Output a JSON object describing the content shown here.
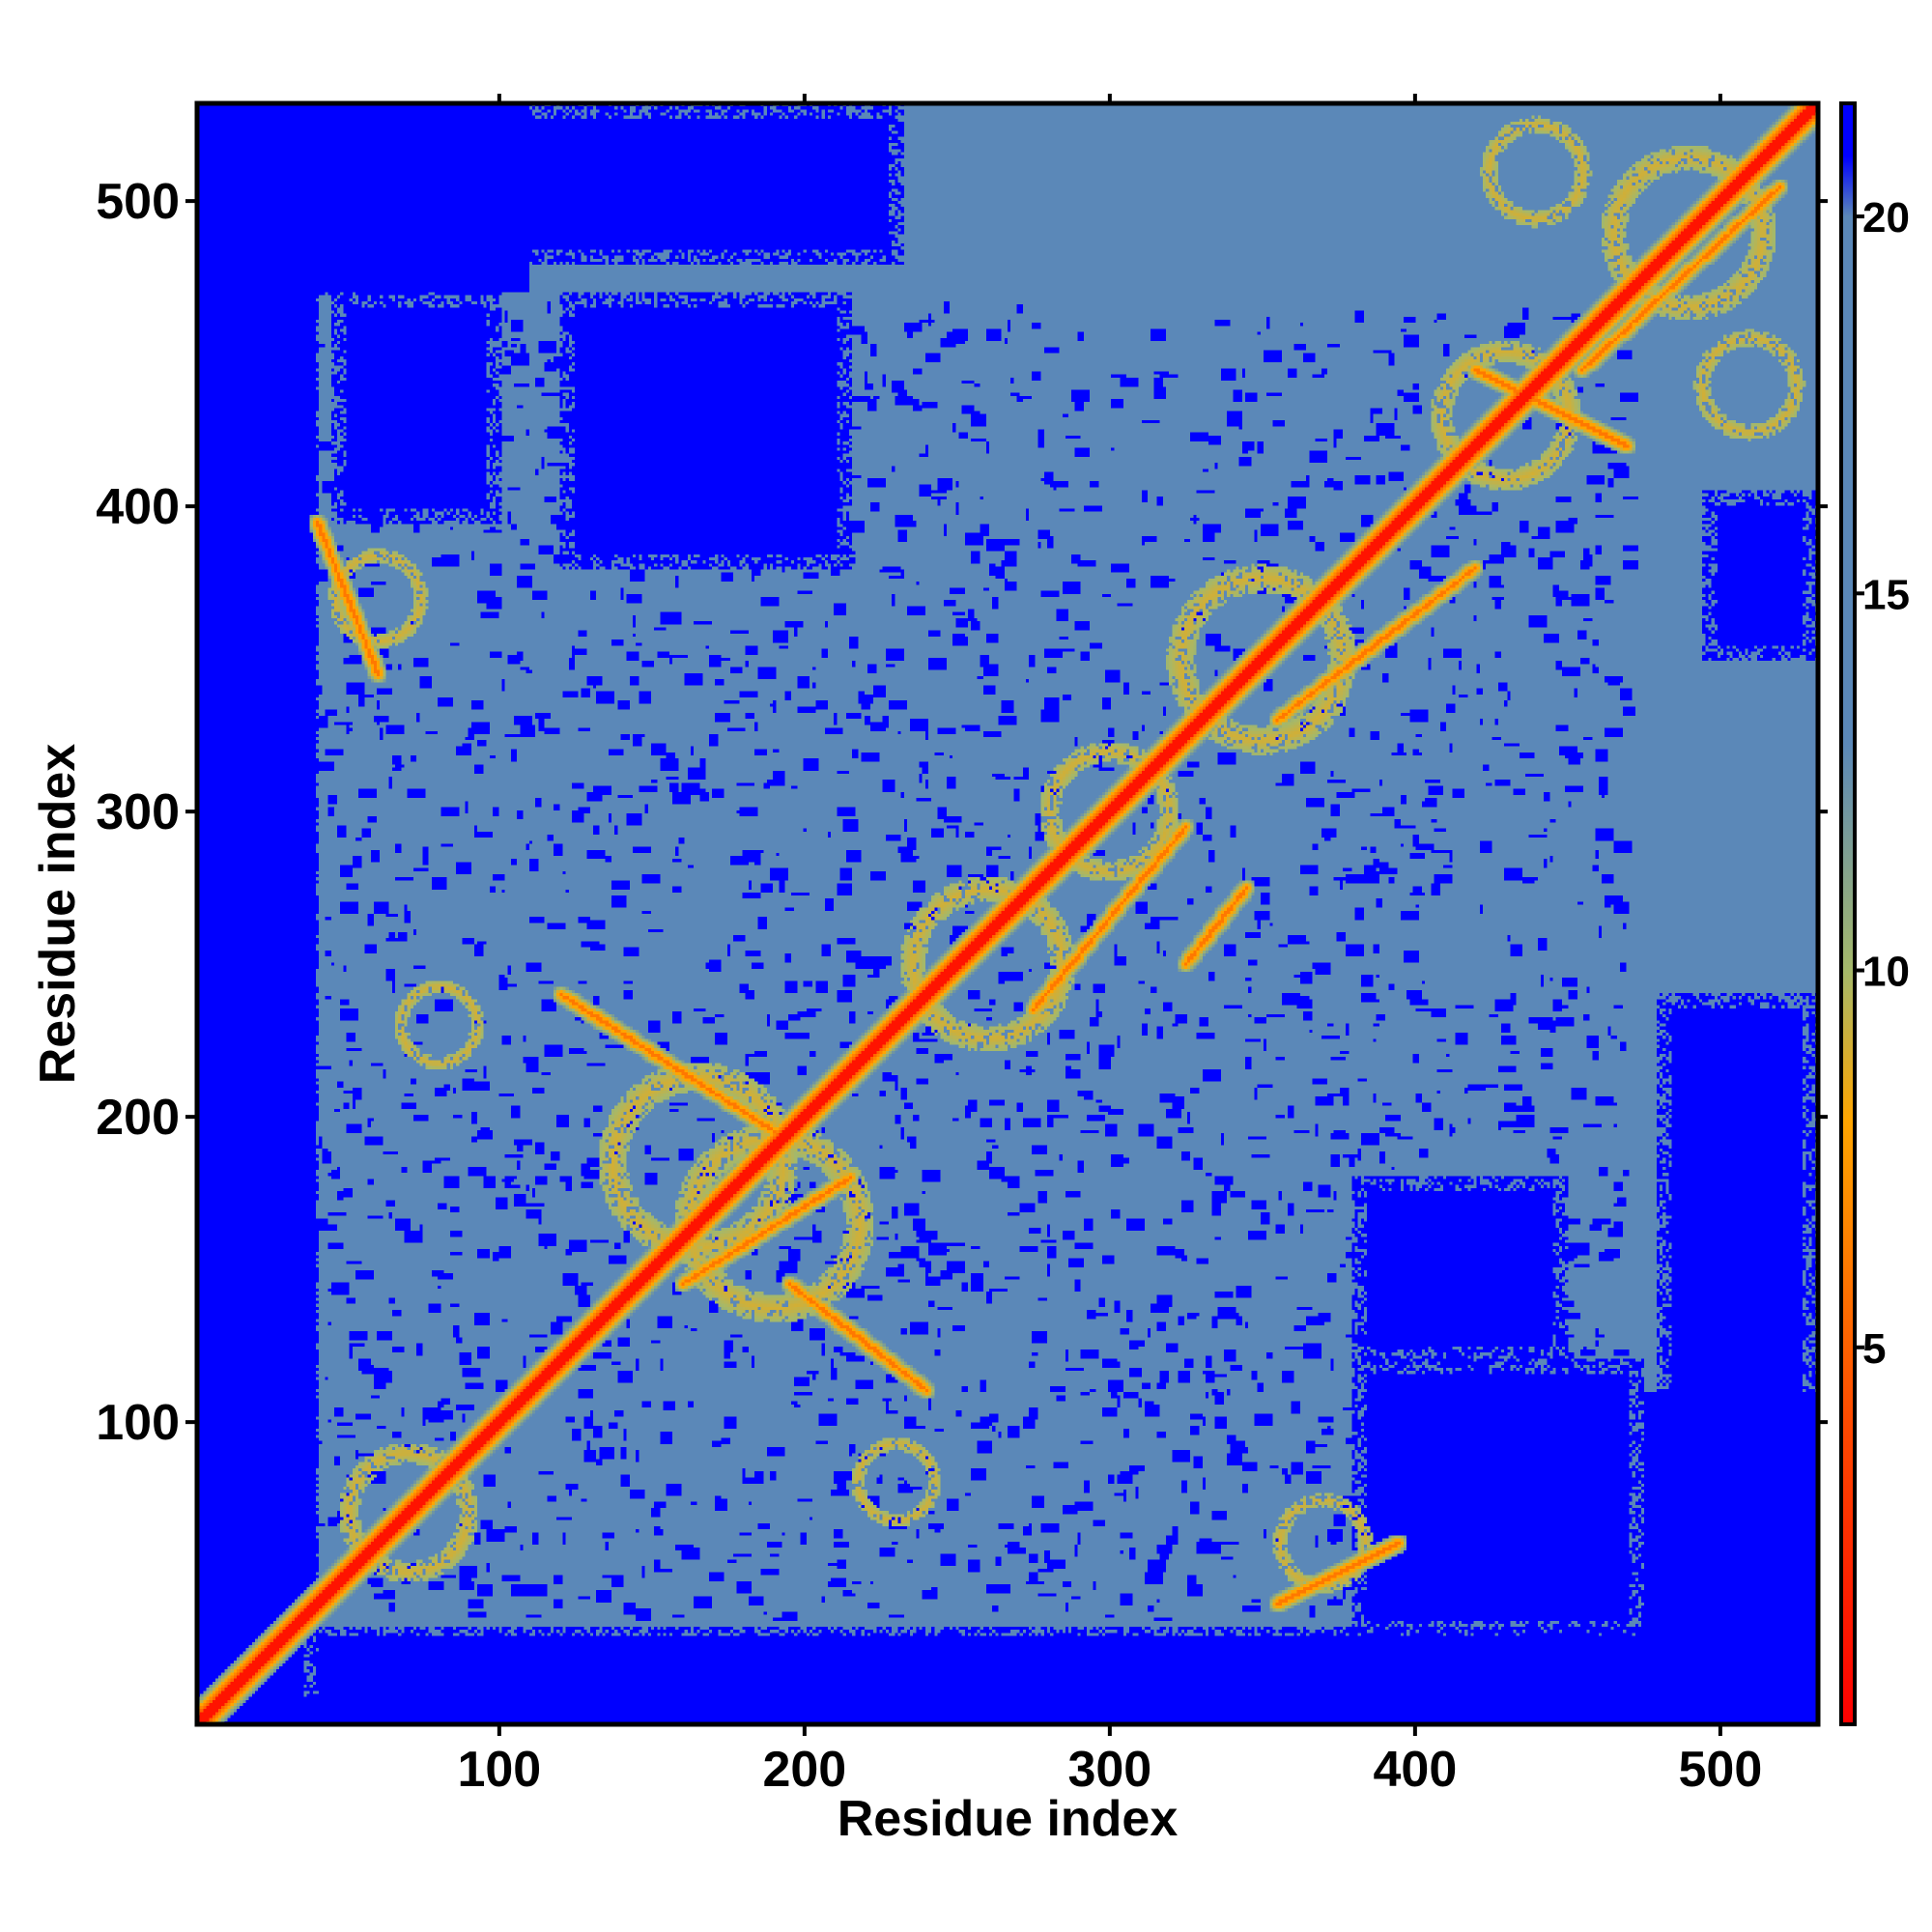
{
  "chart_data": {
    "type": "heatmap",
    "title": "",
    "xlabel": "Residue index",
    "ylabel": "Residue index",
    "xlim": [
      1,
      532
    ],
    "ylim": [
      1,
      532
    ],
    "x_ticks": [
      100,
      200,
      300,
      400,
      500
    ],
    "y_ticks": [
      100,
      200,
      300,
      400,
      500
    ],
    "grid": false,
    "colorbar": {
      "placement": "right",
      "range": [
        0,
        21.5
      ],
      "ticks": [
        5,
        10,
        15,
        20
      ],
      "stops": [
        {
          "value": 0,
          "color": "#ff0000"
        },
        {
          "value": 4,
          "color": "#ff4a00"
        },
        {
          "value": 8,
          "color": "#ffa500"
        },
        {
          "value": 10,
          "color": "#a5b86a"
        },
        {
          "value": 13,
          "color": "#5b88b8"
        },
        {
          "value": 20,
          "color": "#5b88b8"
        },
        {
          "value": 20.8,
          "color": "#0000ff"
        },
        {
          "value": 21.5,
          "color": "#0000ff"
        }
      ]
    },
    "diagonal_band": {
      "value": 1.0
    },
    "background_value": 21.5,
    "folded_region": {
      "x": [
        40,
        475
      ],
      "y": [
        30,
        470
      ],
      "value": 16
    },
    "folded_extensions": [
      {
        "x": [
          10,
          40
        ],
        "y": [
          10,
          40
        ],
        "value": 16
      },
      {
        "x": [
          470,
          532
        ],
        "y": [
          470,
          532
        ],
        "value": 16
      },
      {
        "x": [
          110,
          532
        ],
        "y": [
          470,
          532
        ],
        "value": 16
      },
      {
        "x": [
          470,
          532
        ],
        "y": [
          110,
          470
        ],
        "value": 16
      }
    ],
    "far_blocks": [
      {
        "x": [
          1,
          40
        ],
        "y": [
          1,
          532
        ],
        "value": 21.5
      },
      {
        "x": [
          40,
          100
        ],
        "y": [
          470,
          532
        ],
        "value": 21.5
      },
      {
        "x": [
          100,
          232
        ],
        "y": [
          480,
          532
        ],
        "value": 21.5
      },
      {
        "x": [
          45,
          100
        ],
        "y": [
          395,
          470
        ],
        "value": 21
      },
      {
        "x": [
          120,
          215
        ],
        "y": [
          380,
          470
        ],
        "value": 21
      },
      {
        "x": [
          480,
          532
        ],
        "y": [
          30,
          240
        ],
        "value": 21.5
      },
      {
        "x": [
          380,
          475
        ],
        "y": [
          30,
          120
        ],
        "value": 21
      },
      {
        "x": [
          380,
          450
        ],
        "y": [
          120,
          180
        ],
        "value": 21
      },
      {
        "x": [
          40,
          532
        ],
        "y": [
          1,
          32
        ],
        "value": 21.5
      },
      {
        "x": [
          495,
          532
        ],
        "y": [
          350,
          405
        ],
        "value": 21
      }
    ],
    "contact_clusters": [
      {
        "x": 70,
        "y": 70,
        "r": 28,
        "value": 9
      },
      {
        "x": 165,
        "y": 185,
        "r": 40,
        "value": 9
      },
      {
        "x": 190,
        "y": 165,
        "r": 40,
        "value": 9
      },
      {
        "x": 260,
        "y": 250,
        "r": 35,
        "value": 9
      },
      {
        "x": 300,
        "y": 300,
        "r": 28,
        "value": 9
      },
      {
        "x": 350,
        "y": 350,
        "r": 38,
        "value": 9
      },
      {
        "x": 430,
        "y": 430,
        "r": 30,
        "value": 9
      },
      {
        "x": 490,
        "y": 490,
        "r": 35,
        "value": 9
      },
      {
        "x": 440,
        "y": 510,
        "r": 22,
        "value": 9
      },
      {
        "x": 510,
        "y": 440,
        "r": 22,
        "value": 9
      },
      {
        "x": 60,
        "y": 370,
        "r": 20,
        "value": 9
      },
      {
        "x": 370,
        "y": 60,
        "r": 20,
        "value": 9
      },
      {
        "x": 230,
        "y": 80,
        "r": 18,
        "value": 9
      },
      {
        "x": 80,
        "y": 230,
        "r": 18,
        "value": 9
      }
    ],
    "contact_lines": [
      {
        "from": [
          120,
          240
        ],
        "to": [
          190,
          195
        ],
        "value": 6
      },
      {
        "from": [
          195,
          145
        ],
        "to": [
          240,
          110
        ],
        "value": 6
      },
      {
        "from": [
          160,
          145
        ],
        "to": [
          215,
          180
        ],
        "value": 6
      },
      {
        "from": [
          275,
          235
        ],
        "to": [
          325,
          295
        ],
        "value": 6
      },
      {
        "from": [
          325,
          250
        ],
        "to": [
          345,
          275
        ],
        "value": 6
      },
      {
        "from": [
          355,
          330
        ],
        "to": [
          420,
          380
        ],
        "value": 6
      },
      {
        "from": [
          420,
          445
        ],
        "to": [
          470,
          420
        ],
        "value": 6
      },
      {
        "from": [
          455,
          445
        ],
        "to": [
          520,
          505
        ],
        "value": 6
      },
      {
        "from": [
          40,
          395
        ],
        "to": [
          60,
          345
        ],
        "value": 6
      },
      {
        "from": [
          355,
          40
        ],
        "to": [
          395,
          60
        ],
        "value": 6
      }
    ]
  }
}
